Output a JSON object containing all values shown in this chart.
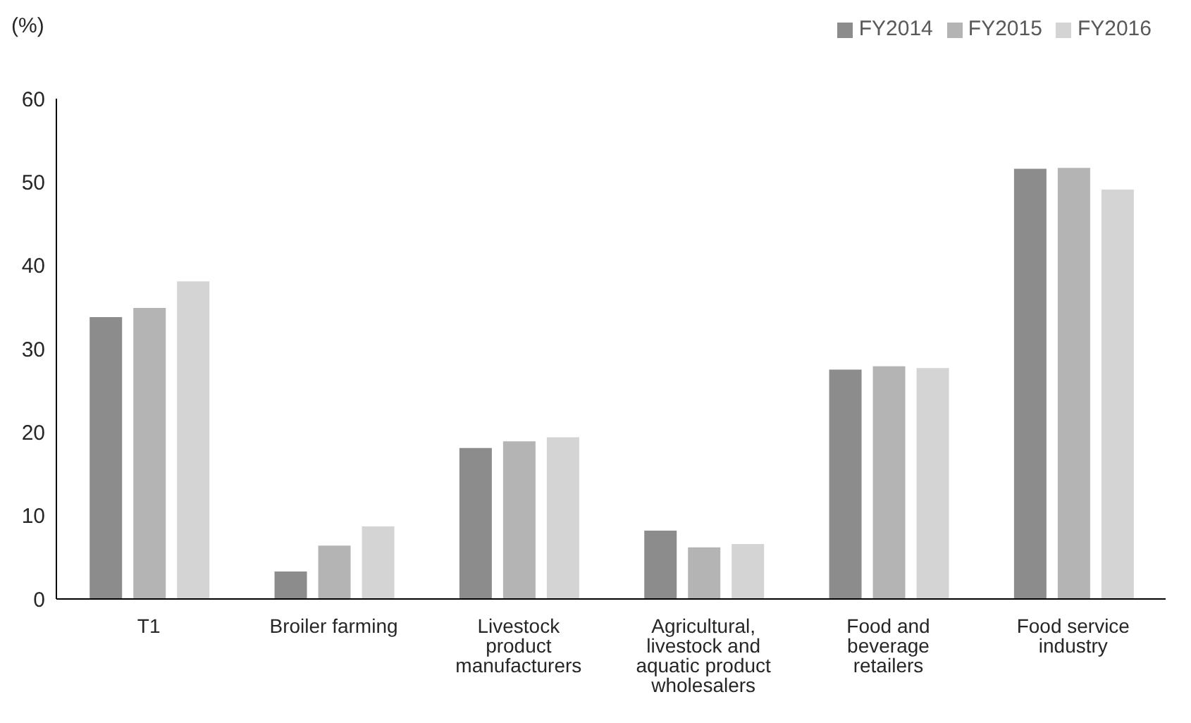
{
  "chart_data": {
    "type": "bar",
    "ylabel": "(%)",
    "categories": [
      "T1",
      "Broiler farming",
      "Livestock product manufacturers",
      "Agricultural, livestock and aquatic product wholesalers",
      "Food and beverage retailers",
      "Food service industry"
    ],
    "series": [
      {
        "name": "FY2014",
        "color": "#8c8c8c",
        "values": [
          33.8,
          3.3,
          18.1,
          8.2,
          27.5,
          51.6
        ]
      },
      {
        "name": "FY2015",
        "color": "#b4b4b4",
        "values": [
          34.9,
          6.4,
          18.9,
          6.2,
          27.9,
          51.7
        ]
      },
      {
        "name": "FY2016",
        "color": "#d4d4d4",
        "values": [
          38.1,
          8.7,
          19.4,
          6.6,
          27.7,
          49.1
        ]
      }
    ],
    "ylim": [
      0,
      60
    ],
    "yticks": [
      0,
      10,
      20,
      30,
      40,
      50,
      60
    ],
    "grid": false,
    "legend": "top right"
  }
}
